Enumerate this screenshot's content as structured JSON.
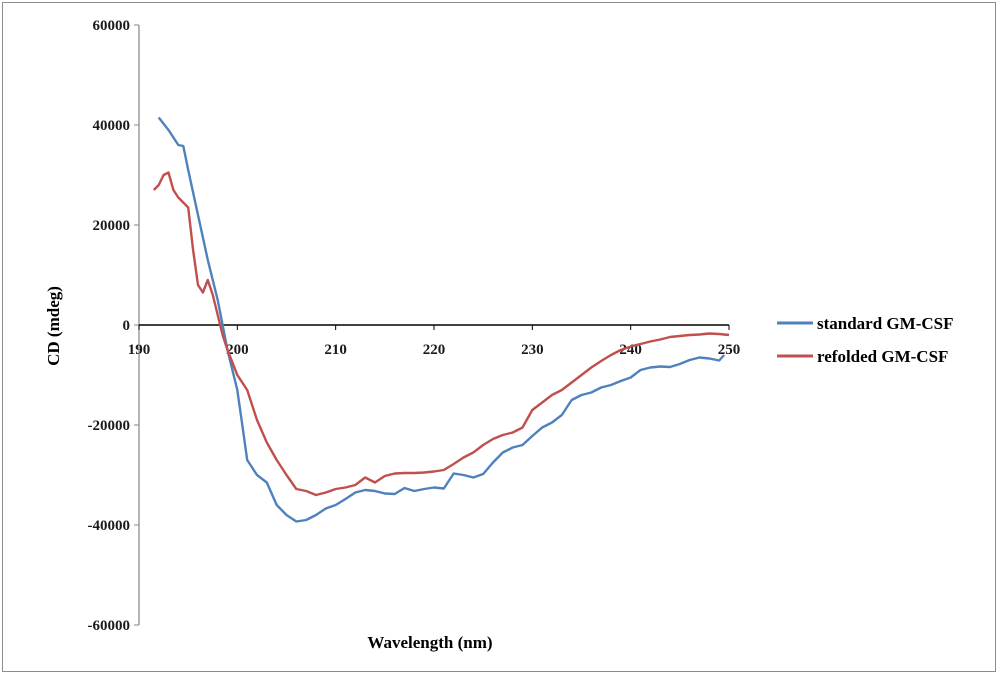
{
  "chart_data": {
    "type": "line",
    "xlabel": "Wavelength (nm)",
    "ylabel": "CD (mdeg)",
    "xlim": [
      190,
      250
    ],
    "ylim": [
      -60000,
      60000
    ],
    "xticks": [
      190,
      200,
      210,
      220,
      230,
      240,
      250
    ],
    "yticks": [
      60000,
      40000,
      20000,
      0,
      -20000,
      -40000,
      -60000
    ],
    "grid": false,
    "legend_position": "right",
    "series": [
      {
        "name": "standard GM-CSF",
        "color": "#4f81bd",
        "x": [
          192,
          193,
          194,
          194.5,
          195,
          196,
          197,
          198,
          198.5,
          199,
          200,
          200.5,
          201,
          202,
          203,
          204,
          205,
          206,
          207,
          208,
          209,
          210,
          211,
          212,
          213,
          214,
          215,
          216,
          217,
          218,
          219,
          220,
          221,
          222,
          223,
          224,
          225,
          226,
          227,
          228,
          229,
          230,
          231,
          232,
          233,
          234,
          235,
          236,
          237,
          238,
          239,
          240,
          241,
          242,
          243,
          244,
          245,
          246,
          247,
          248,
          249,
          249.5
        ],
        "y": [
          41500,
          39000,
          36000,
          35800,
          31000,
          22000,
          13000,
          5000,
          0,
          -5000,
          -13000,
          -20000,
          -27000,
          -30000,
          -31500,
          -36000,
          -38000,
          -39300,
          -39000,
          -38000,
          -36700,
          -36000,
          -34800,
          -33500,
          -33000,
          -33200,
          -33700,
          -33800,
          -32600,
          -33200,
          -32800,
          -32500,
          -32700,
          -29700,
          -30000,
          -30500,
          -29800,
          -27500,
          -25500,
          -24500,
          -24000,
          -22200,
          -20500,
          -19500,
          -18000,
          -15000,
          -14000,
          -13500,
          -12500,
          -12000,
          -11200,
          -10500,
          -9000,
          -8500,
          -8300,
          -8400,
          -7800,
          -7000,
          -6500,
          -6700,
          -7100,
          -6000
        ]
      },
      {
        "name": "refolded GM-CSF",
        "color": "#c0504d",
        "x": [
          191.5,
          192,
          192.5,
          193,
          193.5,
          194,
          195,
          195.5,
          196,
          196.5,
          197,
          197.5,
          198,
          198.5,
          199,
          200,
          201,
          202,
          203,
          204,
          205,
          206,
          207,
          208,
          209,
          210,
          211,
          212,
          213,
          214,
          215,
          216,
          217,
          218,
          219,
          220,
          221,
          222,
          223,
          224,
          225,
          226,
          227,
          228,
          229,
          230,
          231,
          232,
          233,
          234,
          235,
          236,
          237,
          238,
          239,
          240,
          241,
          242,
          243,
          244,
          245,
          246,
          247,
          248,
          249,
          250
        ],
        "y": [
          27000,
          28000,
          30000,
          30500,
          27000,
          25500,
          23500,
          15000,
          8000,
          6500,
          9000,
          6000,
          2000,
          -2000,
          -5000,
          -10000,
          -13000,
          -19000,
          -23500,
          -27000,
          -30000,
          -32800,
          -33200,
          -34000,
          -33500,
          -32800,
          -32500,
          -32000,
          -30500,
          -31500,
          -30200,
          -29700,
          -29600,
          -29600,
          -29500,
          -29300,
          -29000,
          -27800,
          -26500,
          -25500,
          -24000,
          -22800,
          -22000,
          -21500,
          -20500,
          -17000,
          -15500,
          -14000,
          -13000,
          -11500,
          -10000,
          -8500,
          -7200,
          -6000,
          -5000,
          -4300,
          -3800,
          -3300,
          -2900,
          -2400,
          -2200,
          -2000,
          -1900,
          -1700,
          -1800,
          -2000
        ]
      }
    ]
  }
}
